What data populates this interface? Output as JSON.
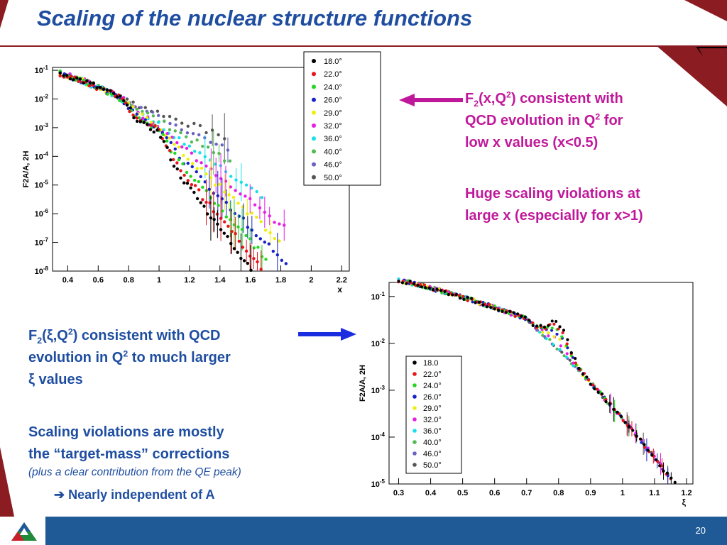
{
  "slide": {
    "title": "Scaling of the nuclear structure functions",
    "page_number": "20",
    "logo": "tri-color triangle logo"
  },
  "right_text": {
    "line1": {
      "a": "F",
      "sub": "2",
      "b": "(x,Q",
      "sup": "2",
      "c": ") consistent with"
    },
    "line2": {
      "a": "QCD evolution in Q",
      "sup": "2",
      "c": " for"
    },
    "line3": "low x values (x<0.5)",
    "line4": "Huge scaling violations at",
    "line5": "large x (especially for x>1)"
  },
  "left_text": {
    "line1": {
      "a": "F",
      "sub": "2",
      "b": "(ξ,Q",
      "sup": "2",
      "c": ") consistent with QCD"
    },
    "line2": {
      "a": "evolution in Q",
      "sup": "2",
      "c": " to much larger"
    },
    "line3": "ξ values",
    "line4": "Scaling violations are mostly",
    "line5": "the “target-mass” corrections",
    "line6": "(plus a clear contribution from the QE peak)",
    "line7": "➔ Nearly independent of A"
  },
  "colors": {
    "title": "#1f4ea1",
    "magenta": "#c0189a",
    "accent_red": "#8b1c22",
    "footer": "#1f5a96"
  },
  "chart_data": [
    {
      "type": "scatter",
      "xlabel": "x",
      "ylabel": "F2A/A, 2H",
      "xlim": [
        0.3,
        2.25
      ],
      "ylim_log10": [
        -8,
        -0.9
      ],
      "log_y": true,
      "x_ticks": [
        "0.4",
        "0.6",
        "0.8",
        "1",
        "1.2",
        "1.4",
        "1.6",
        "1.8",
        "2",
        "2.2"
      ],
      "y_ticks": [
        "10-8",
        "10-7",
        "10-6",
        "10-5",
        "10-4",
        "10-3",
        "10-2",
        "10-1"
      ],
      "legend_position": "top-right",
      "series": [
        {
          "name": "18.0°",
          "color": "#000000"
        },
        {
          "name": "22.0°",
          "color": "#e8141c"
        },
        {
          "name": "24.0°",
          "color": "#22d622"
        },
        {
          "name": "26.0°",
          "color": "#1822c8"
        },
        {
          "name": "29.0°",
          "color": "#eeee10"
        },
        {
          "name": "32.0°",
          "color": "#e61ee6"
        },
        {
          "name": "36.0°",
          "color": "#18e0e8"
        },
        {
          "name": "40.0°",
          "color": "#55b855"
        },
        {
          "name": "46.0°",
          "color": "#6a62c2"
        },
        {
          "name": "50.0°",
          "color": "#555555"
        }
      ]
    },
    {
      "type": "scatter",
      "xlabel": "ξ",
      "ylabel": "F2A/A, 2H",
      "xlim": [
        0.27,
        1.22
      ],
      "ylim_log10": [
        -5,
        -0.7
      ],
      "log_y": true,
      "x_ticks": [
        "0.3",
        "0.4",
        "0.5",
        "0.6",
        "0.7",
        "0.8",
        "0.9",
        "1",
        "1.1",
        "1.2"
      ],
      "y_ticks": [
        "10-5",
        "10-4",
        "10-3",
        "10-2",
        "10-1"
      ],
      "legend_position": "bottom-left",
      "series": [
        {
          "name": "18.0",
          "color": "#000000"
        },
        {
          "name": "22.0°",
          "color": "#e8141c"
        },
        {
          "name": "24.0°",
          "color": "#22d622"
        },
        {
          "name": "26.0°",
          "color": "#1822c8"
        },
        {
          "name": "29.0°",
          "color": "#eeee10"
        },
        {
          "name": "32.0°",
          "color": "#e61ee6"
        },
        {
          "name": "36.0°",
          "color": "#18e0e8"
        },
        {
          "name": "40.0°",
          "color": "#55b855"
        },
        {
          "name": "46.0°",
          "color": "#6a62c2"
        },
        {
          "name": "50.0°",
          "color": "#555555"
        }
      ]
    }
  ]
}
